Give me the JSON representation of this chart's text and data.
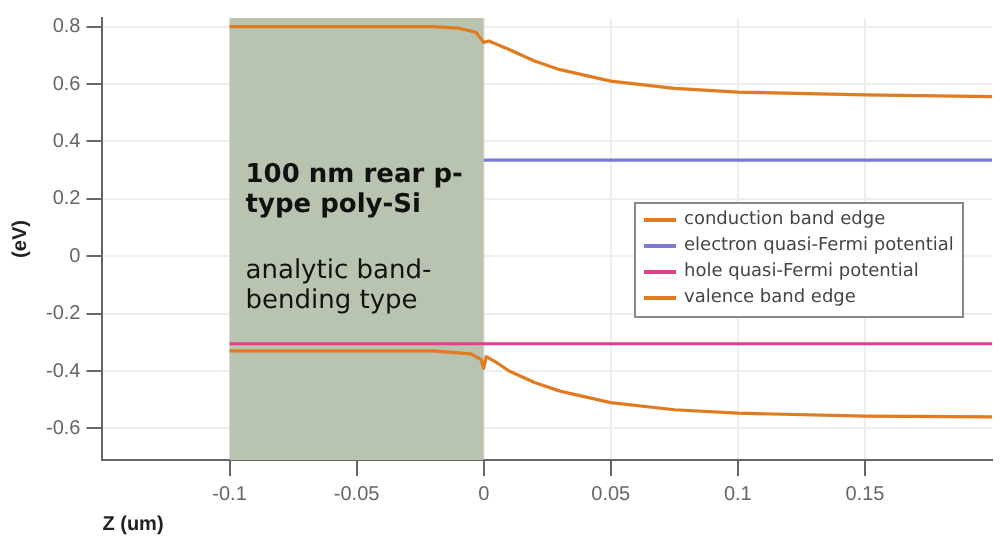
{
  "chart_data": {
    "type": "line",
    "xlabel": "Z (um)",
    "ylabel": "(eV)",
    "xlim": [
      -0.15,
      0.2
    ],
    "xticks": [
      -0.1,
      -0.05,
      0,
      0.05,
      0.1,
      0.15
    ],
    "ylim": [
      -0.71,
      0.83
    ],
    "yticks": [
      -0.6,
      -0.4,
      -0.2,
      0,
      0.2,
      0.4,
      0.6,
      0.8
    ],
    "grid": true,
    "legend": "right",
    "marker": "none",
    "line_style": "solid",
    "bands": [
      {
        "axis": "x",
        "from": -0.1,
        "to": 0,
        "label": "100 nm rear p-type poly-Si",
        "color": "#b9c4b0"
      }
    ],
    "annotations": [
      "analytic band-bending type"
    ],
    "series": [
      {
        "name": "conduction band edge",
        "color": "#e07b20",
        "x": [
          -0.1,
          -0.02,
          -0.01,
          -0.003,
          0,
          0.002,
          0.01,
          0.02,
          0.03,
          0.05,
          0.075,
          0.1,
          0.15,
          0.2
        ],
        "values": [
          0.8,
          0.8,
          0.795,
          0.78,
          0.745,
          0.75,
          0.72,
          0.68,
          0.65,
          0.61,
          0.585,
          0.572,
          0.562,
          0.556
        ]
      },
      {
        "name": "electron quasi-Fermi potential",
        "color": "#7b7bd0",
        "x": [
          0,
          0.2
        ],
        "values": [
          0.335,
          0.335
        ]
      },
      {
        "name": "hole quasi-Fermi potential",
        "color": "#e0408a",
        "x": [
          -0.1,
          0.2
        ],
        "values": [
          -0.305,
          -0.305
        ]
      },
      {
        "name": "valence band edge",
        "color": "#e07b20",
        "x": [
          -0.1,
          -0.02,
          -0.005,
          -0.001,
          0,
          0.001,
          0.005,
          0.01,
          0.02,
          0.03,
          0.05,
          0.075,
          0.1,
          0.15,
          0.2
        ],
        "values": [
          -0.33,
          -0.33,
          -0.34,
          -0.36,
          -0.39,
          -0.35,
          -0.37,
          -0.4,
          -0.44,
          -0.47,
          -0.51,
          -0.535,
          -0.547,
          -0.557,
          -0.56
        ]
      }
    ]
  }
}
